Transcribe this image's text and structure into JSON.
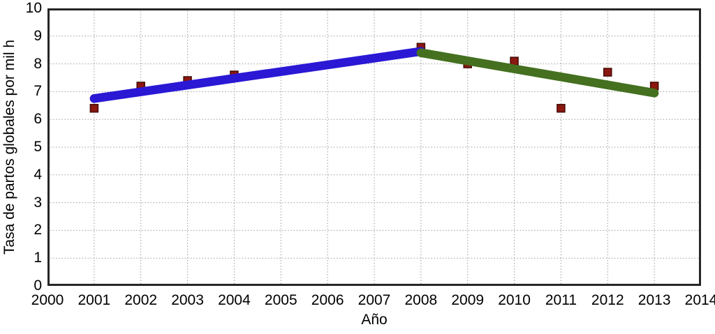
{
  "chart_data": {
    "type": "scatter",
    "title": "",
    "xlabel": "Año",
    "ylabel": "Tasa de partos globales por mil h",
    "xlim": [
      2000,
      2014
    ],
    "ylim": [
      0,
      10
    ],
    "x_ticks": [
      2000,
      2001,
      2002,
      2003,
      2004,
      2005,
      2006,
      2007,
      2008,
      2009,
      2010,
      2011,
      2012,
      2013,
      2014
    ],
    "y_ticks": [
      0,
      1,
      2,
      3,
      4,
      5,
      6,
      7,
      8,
      9,
      10
    ],
    "grid": true,
    "legend_position": "none",
    "points": {
      "x": [
        2001,
        2002,
        2003,
        2004,
        2008,
        2009,
        2010,
        2011,
        2012,
        2013
      ],
      "y": [
        6.4,
        7.2,
        7.4,
        7.6,
        8.6,
        8.0,
        8.1,
        6.4,
        7.7,
        7.2
      ]
    },
    "trend_lines": [
      {
        "name": "trend-line-rising",
        "color": "#2a18d5",
        "x": [
          2001,
          2008
        ],
        "y": [
          6.75,
          8.45
        ]
      },
      {
        "name": "trend-line-falling",
        "color": "#44701f",
        "x": [
          2008,
          2013
        ],
        "y": [
          8.4,
          6.95
        ]
      }
    ],
    "marker": {
      "shape": "square",
      "fill": "#8b1710",
      "stroke": "#430b06",
      "size": 11
    },
    "colors": {
      "grid": "#9a9a9a",
      "frame": "#262626",
      "background": "#ffffff",
      "text": "#000000"
    }
  }
}
